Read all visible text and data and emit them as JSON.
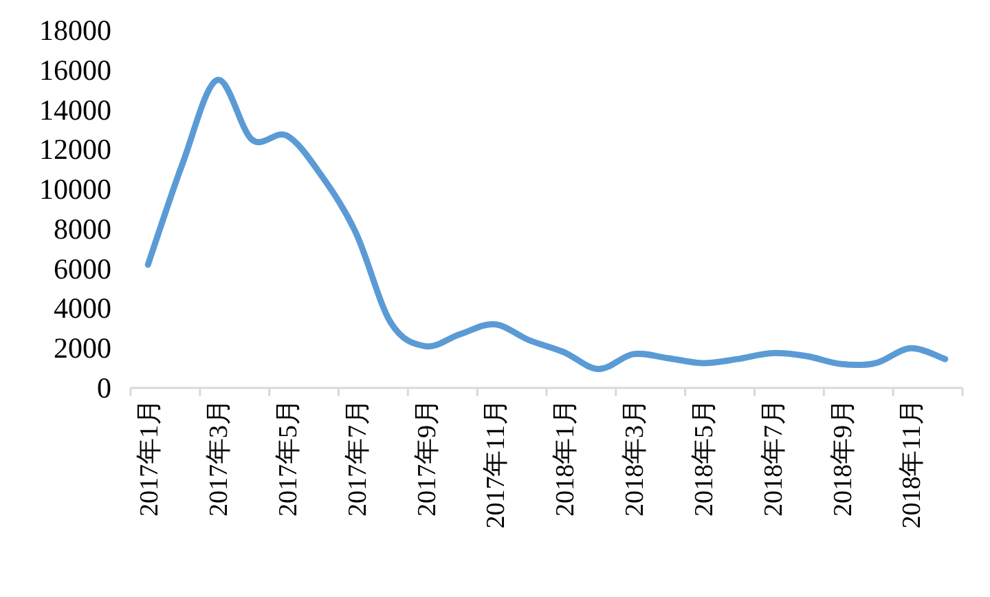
{
  "chart_data": {
    "type": "line",
    "categories": [
      "2017年1月",
      null,
      "2017年3月",
      null,
      "2017年5月",
      null,
      "2017年7月",
      null,
      "2017年9月",
      null,
      "2017年11月",
      null,
      "2018年1月",
      null,
      "2018年3月",
      null,
      "2018年5月",
      null,
      "2018年7月",
      null,
      "2018年9月",
      null,
      "2018年11月",
      null
    ],
    "series": [
      {
        "color": "#5b9bd5",
        "values": [
          6200,
          11300,
          15500,
          12500,
          12700,
          10700,
          7800,
          3300,
          2100,
          2700,
          3200,
          2400,
          1800,
          950,
          1700,
          1500,
          1250,
          1450,
          1750,
          1600,
          1200,
          1250,
          2000,
          1450
        ]
      }
    ],
    "ylim": [
      0,
      18000
    ],
    "yticks": [
      0,
      2000,
      4000,
      6000,
      8000,
      10000,
      12000,
      14000,
      16000,
      18000
    ],
    "grid": false,
    "marker": "none",
    "line_style": "solid"
  }
}
